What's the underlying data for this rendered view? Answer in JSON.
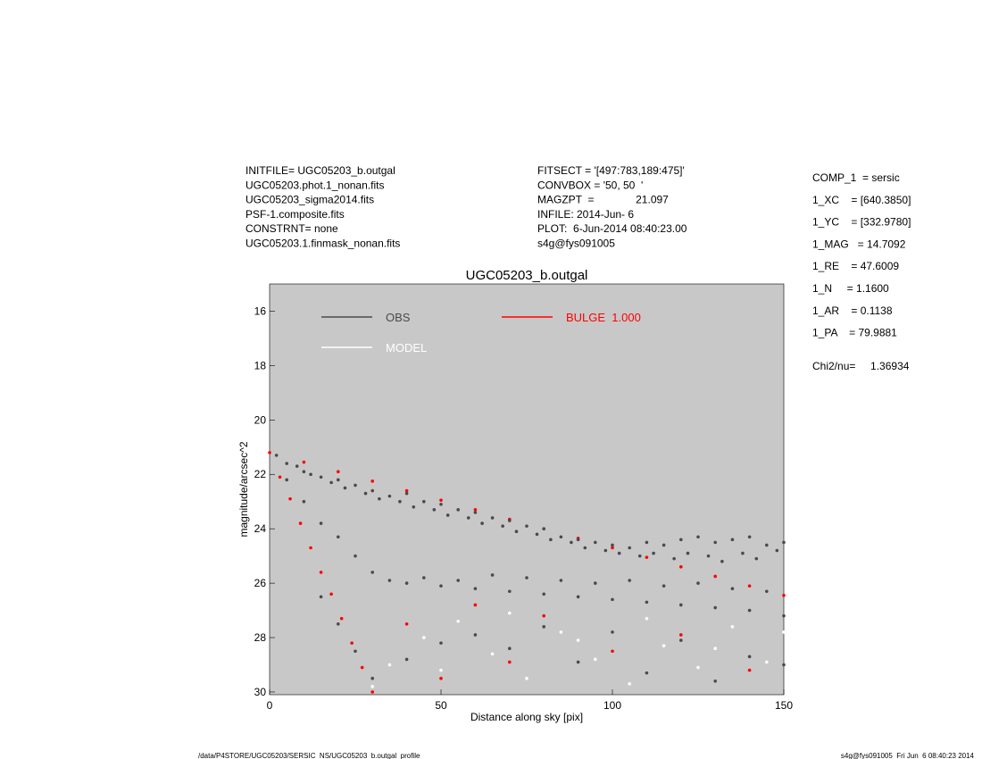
{
  "header": {
    "left": [
      "INITFILE= UGC05203_b.outgal",
      "UGC05203.phot.1_nonan.fits",
      "UGC05203_sigma2014.fits",
      "PSF-1.composite.fits",
      "CONSTRNT= none",
      "UGC05203.1.finmask_nonan.fits"
    ],
    "middle": [
      "FITSECT = '[497:783,189:475]'",
      "CONVBOX = '50, 50  '",
      "MAGZPT  =              21.097",
      "INFILE: 2014-Jun- 6",
      "PLOT:  6-Jun-2014 08:40:23.00",
      "s4g@fys091005"
    ]
  },
  "parameters": [
    "COMP_1  = sersic",
    "1_XC    = [640.3850]",
    "1_YC    = [332.9780]",
    "1_MAG   = 14.7092",
    "1_RE    = 47.6009",
    "1_N     = 1.1600",
    "1_AR    = 0.1138",
    "1_PA    = 79.9881",
    "Chi2/nu=     1.36934"
  ],
  "footer": {
    "left": "/data/P4STORE/UGC05203/SERSIC_NS/UGC05203_b.outgal_profile",
    "right": "s4g@fys091005  Fri Jun  6 08:40:23 2014"
  },
  "chart_data": {
    "type": "scatter",
    "title": "UGC05203_b.outgal",
    "x_label": "Distance along sky [pix]",
    "y_label": "magnitude/arcsec^2",
    "xlim": [
      0,
      150
    ],
    "xticks": [
      0,
      50,
      100,
      150
    ],
    "ylim": [
      15,
      30.1
    ],
    "yticks": [
      16,
      18,
      20,
      22,
      24,
      26,
      28,
      30
    ],
    "y_inverted": true,
    "grid": false,
    "background": "#c8c8c8",
    "series": [
      {
        "name": "OBS",
        "color": "#4a4a4a",
        "x": [
          2,
          5,
          8,
          10,
          12,
          15,
          18,
          20,
          22,
          25,
          28,
          30,
          32,
          35,
          38,
          40,
          42,
          45,
          48,
          50,
          52,
          55,
          58,
          60,
          62,
          65,
          68,
          70,
          72,
          75,
          78,
          80,
          82,
          85,
          88,
          90,
          92,
          95,
          98,
          100,
          102,
          105,
          108,
          110,
          112,
          115,
          118,
          120,
          122,
          125,
          128,
          130,
          132,
          135,
          138,
          140,
          142,
          145,
          148,
          150,
          5,
          10,
          15,
          20,
          25,
          30,
          35,
          40,
          45,
          50,
          55,
          60,
          65,
          70,
          75,
          80,
          85,
          90,
          95,
          100,
          105,
          110,
          115,
          120,
          125,
          130,
          135,
          140,
          145,
          150,
          15,
          20,
          25,
          30,
          40,
          50,
          60,
          70,
          80,
          90,
          100,
          110,
          120,
          130,
          140,
          150
        ],
        "values": [
          21.3,
          21.6,
          21.7,
          21.9,
          22.0,
          22.1,
          22.3,
          22.2,
          22.5,
          22.4,
          22.7,
          22.6,
          22.9,
          22.8,
          23.0,
          22.7,
          23.2,
          23.0,
          23.3,
          23.1,
          23.5,
          23.3,
          23.6,
          23.4,
          23.8,
          23.6,
          23.9,
          23.7,
          24.1,
          23.9,
          24.2,
          24.0,
          24.4,
          24.3,
          24.5,
          24.4,
          24.7,
          24.5,
          24.8,
          24.6,
          24.9,
          24.7,
          25.0,
          24.5,
          24.9,
          24.6,
          25.1,
          24.4,
          24.9,
          24.3,
          25.0,
          24.5,
          25.2,
          24.4,
          24.9,
          24.3,
          25.1,
          24.6,
          24.8,
          24.5,
          22.2,
          23.0,
          23.8,
          24.3,
          25.0,
          25.6,
          25.9,
          26.0,
          25.8,
          26.1,
          25.9,
          26.2,
          25.7,
          26.3,
          25.8,
          26.4,
          25.9,
          26.5,
          26.0,
          26.6,
          25.9,
          26.7,
          26.1,
          26.8,
          26.0,
          26.9,
          26.2,
          27.0,
          26.3,
          27.2,
          26.5,
          27.5,
          28.5,
          29.5,
          28.8,
          28.2,
          27.9,
          28.4,
          27.6,
          28.9,
          27.8,
          29.3,
          28.1,
          29.6,
          28.7,
          29.0
        ]
      },
      {
        "name": "MODEL",
        "color": "#ffffff",
        "x": [
          35,
          45,
          55,
          65,
          75,
          85,
          95,
          105,
          115,
          125,
          135,
          145,
          30,
          50,
          70,
          90,
          110,
          130,
          150
        ],
        "values": [
          29.0,
          28.0,
          27.4,
          28.6,
          29.5,
          27.8,
          28.8,
          29.7,
          28.3,
          29.1,
          27.6,
          28.9,
          29.8,
          29.2,
          27.1,
          28.1,
          27.3,
          28.4,
          27.8
        ]
      },
      {
        "name": "BULGE  1.000",
        "color": "#ff0000",
        "x": [
          0,
          10,
          20,
          30,
          40,
          50,
          60,
          70,
          80,
          90,
          100,
          110,
          120,
          130,
          140,
          150,
          3,
          6,
          9,
          12,
          15,
          18,
          21,
          24,
          27,
          30,
          40,
          60,
          80,
          100,
          120,
          140,
          50,
          70
        ],
        "values": [
          21.2,
          21.55,
          21.9,
          22.25,
          22.6,
          22.95,
          23.3,
          23.65,
          24.0,
          24.35,
          24.7,
          25.05,
          25.4,
          25.75,
          26.1,
          26.45,
          22.1,
          22.9,
          23.8,
          24.7,
          25.6,
          26.4,
          27.3,
          28.2,
          29.1,
          30.0,
          27.5,
          26.8,
          27.2,
          28.5,
          27.9,
          29.2,
          29.5,
          28.9
        ]
      }
    ]
  }
}
